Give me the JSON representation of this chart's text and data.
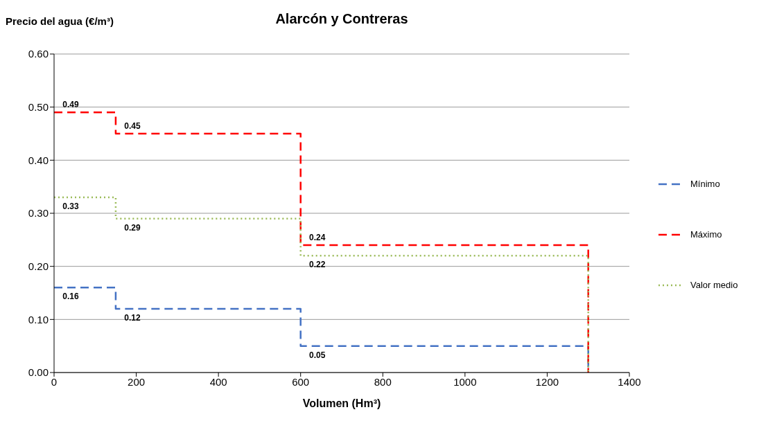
{
  "chart_data": {
    "type": "step",
    "title": "Alarcón y Contreras",
    "xlabel": "Volumen (Hm³)",
    "ylabel": "Precio del agua  (€/m³)",
    "xlim": [
      0,
      1400
    ],
    "xticks": [
      0,
      200,
      400,
      600,
      800,
      1000,
      1200,
      1400
    ],
    "ylim": [
      0,
      0.6
    ],
    "yticks": [
      {
        "value": 0,
        "label": "0.00"
      },
      {
        "value": 0.1,
        "label": "0.10"
      },
      {
        "value": 0.2,
        "label": "0.20"
      },
      {
        "value": 0.3,
        "label": "0.30"
      },
      {
        "value": 0.4,
        "label": "0.40"
      },
      {
        "value": 0.5,
        "label": "0.50"
      },
      {
        "value": 0.6,
        "label": "0.60"
      }
    ],
    "grid": "y",
    "legend": "right",
    "marker": "none",
    "series": [
      {
        "name": "Mínimo",
        "color": "#4472c4",
        "line_style": "dashed",
        "x": [
          0,
          150,
          600,
          1300
        ],
        "values": [
          0.16,
          0.12,
          0.05,
          0
        ],
        "value_labels": [
          "0.16",
          "0.12",
          "0.05",
          null
        ]
      },
      {
        "name": "Máximo",
        "color": "#ff0000",
        "line_style": "dashed",
        "x": [
          0,
          150,
          600,
          1300
        ],
        "values": [
          0.49,
          0.45,
          0.24,
          0
        ],
        "value_labels": [
          "0.49",
          "0.45",
          "0.24",
          null
        ]
      },
      {
        "name": "Valor medio",
        "color": "#9bbb59",
        "line_style": "dotted",
        "x": [
          0,
          150,
          600,
          1300
        ],
        "values": [
          0.33,
          0.29,
          0.22,
          0
        ],
        "value_labels": [
          "0.33",
          "0.29",
          "0.22",
          null
        ]
      }
    ]
  }
}
